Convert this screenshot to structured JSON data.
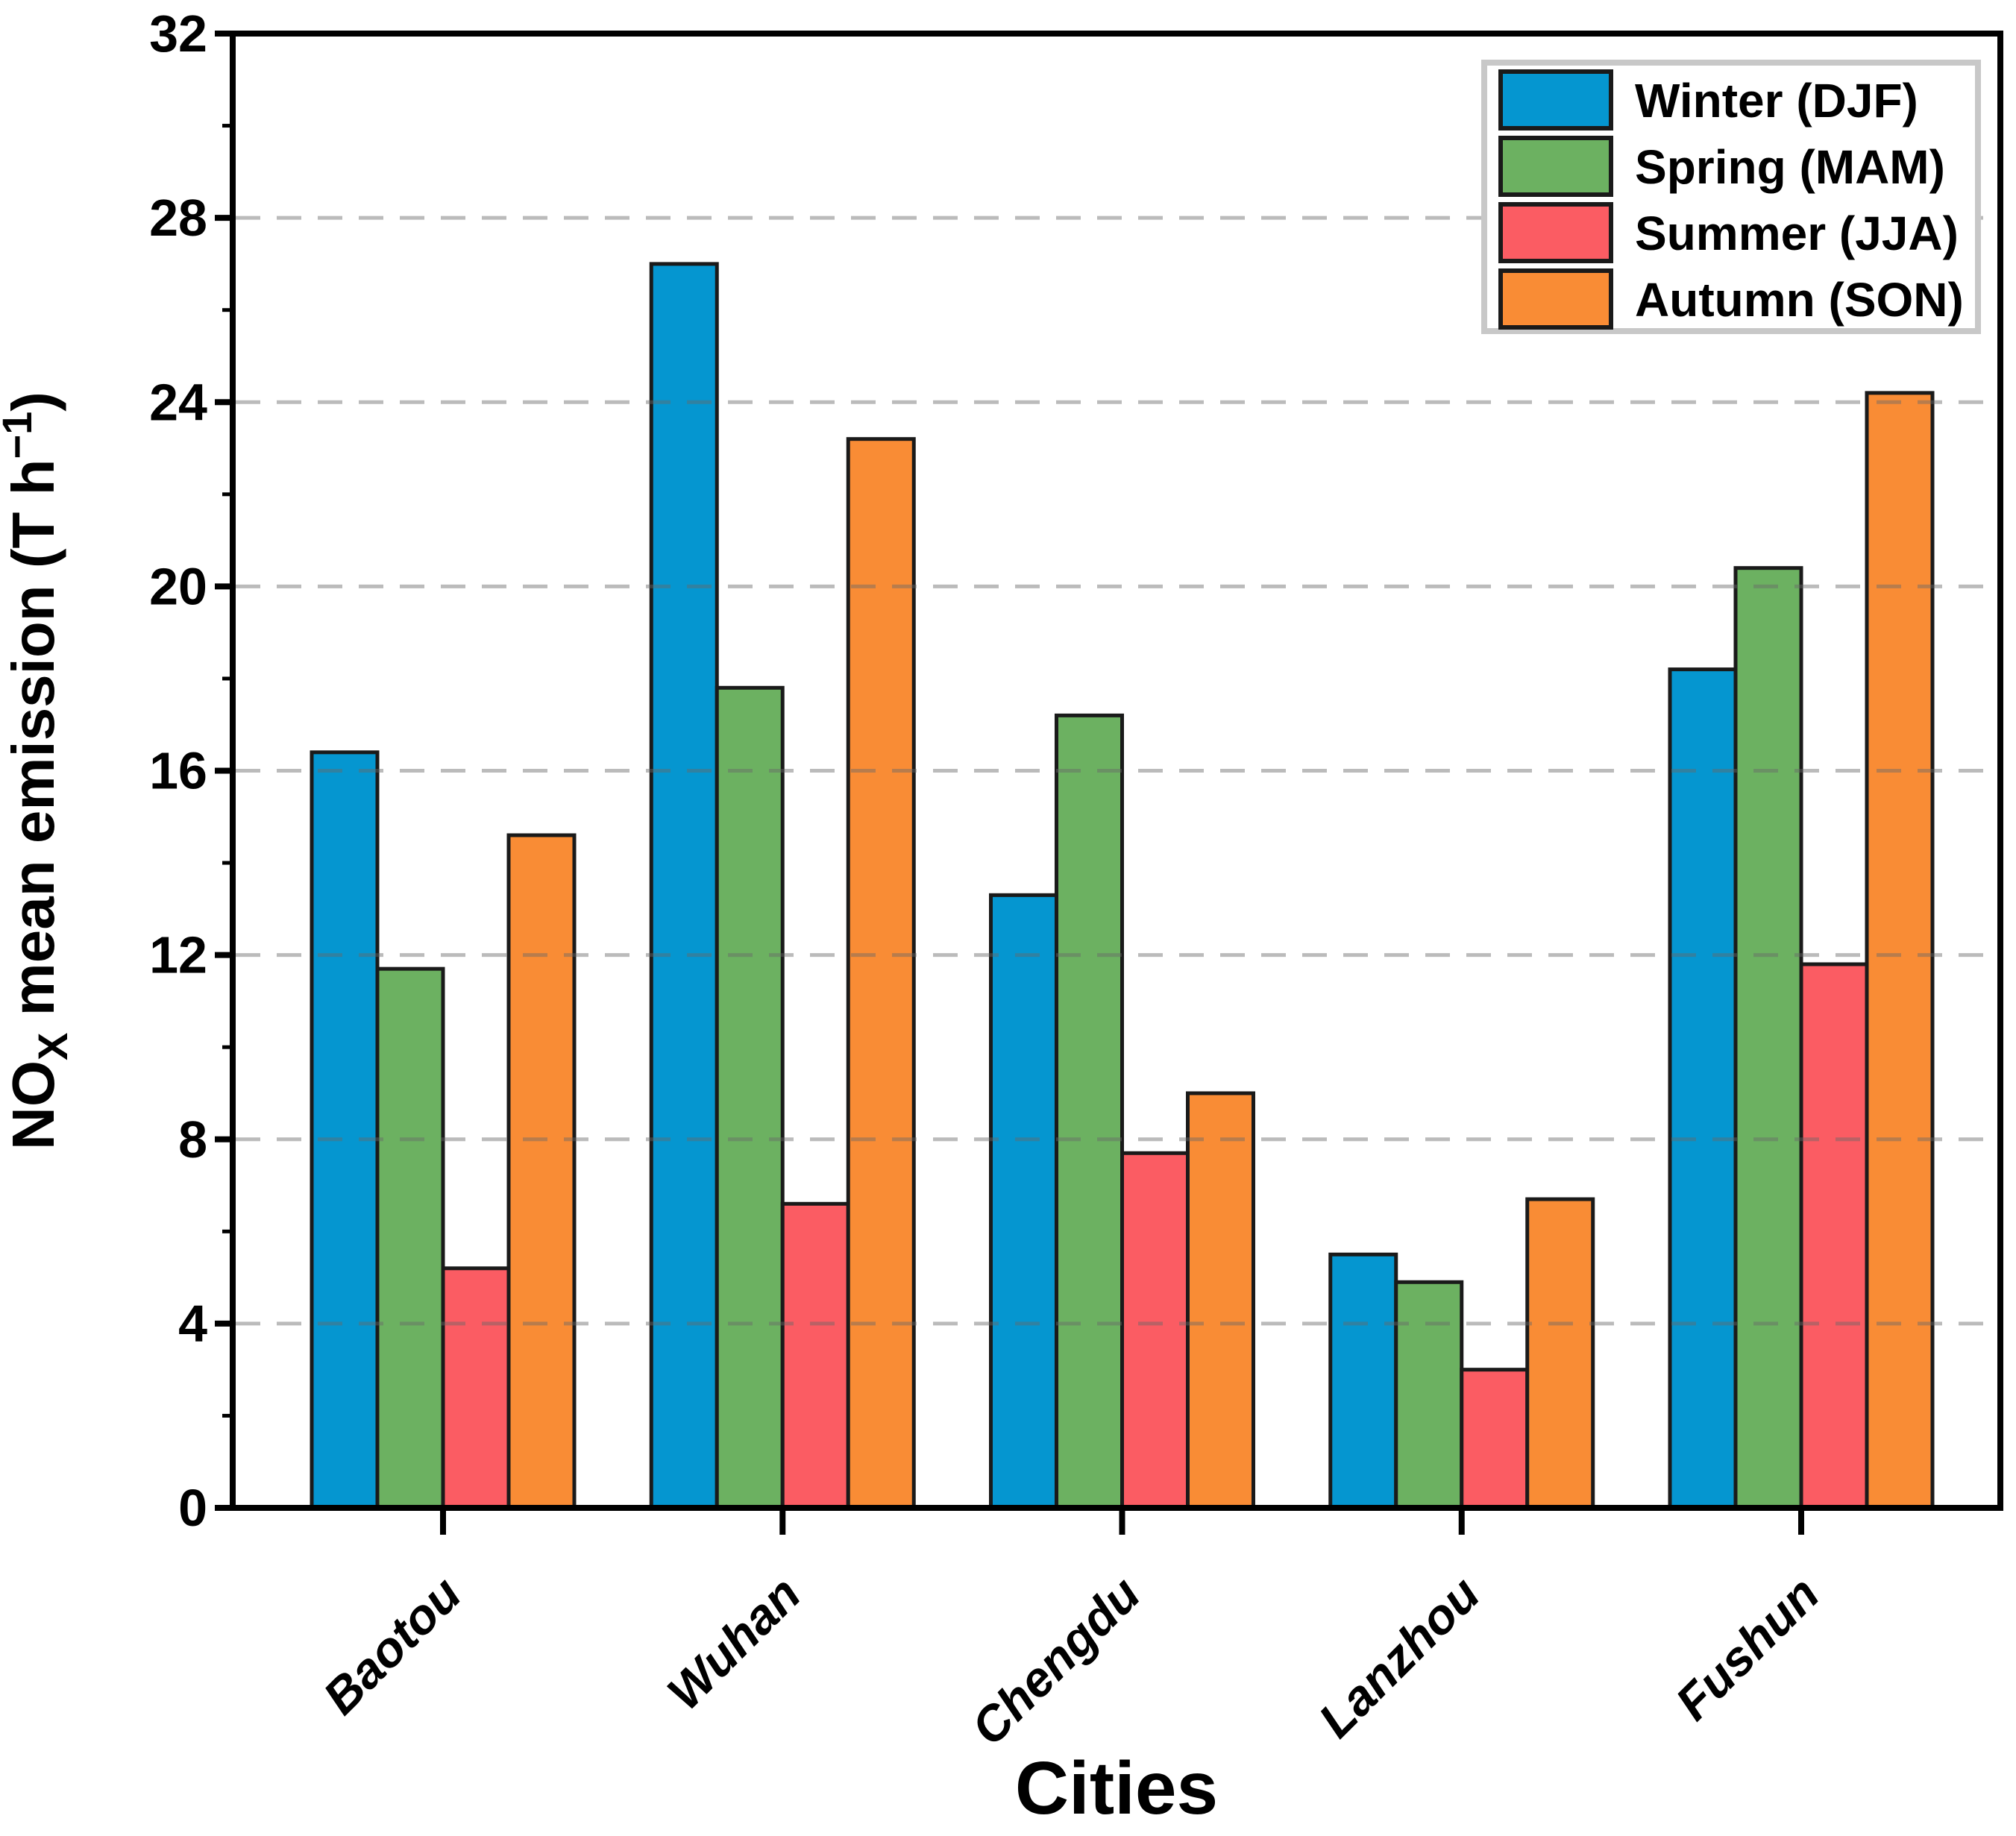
{
  "chart_data": {
    "type": "bar",
    "title": "",
    "categories": [
      "Baotou",
      "Wuhan",
      "Chengdu",
      "Lanzhou",
      "Fushun"
    ],
    "series": [
      {
        "name": "Winter (DJF)",
        "color": "#0596D0",
        "values": [
          16.4,
          27.0,
          13.3,
          5.5,
          18.2
        ]
      },
      {
        "name": "Spring (MAM)",
        "color": "#6CB161",
        "values": [
          11.7,
          17.8,
          17.2,
          4.9,
          20.4
        ]
      },
      {
        "name": "Summer (JJA)",
        "color": "#FB5C63",
        "values": [
          5.2,
          6.6,
          7.7,
          3.0,
          11.8
        ]
      },
      {
        "name": "Autumn (SON)",
        "color": "#F98C35",
        "values": [
          14.6,
          23.2,
          9.0,
          6.7,
          24.2
        ]
      }
    ],
    "xlabel": "Cities",
    "ylabel": "NOX mean emission (T h−1)",
    "ylabel_parts": {
      "base": "NO",
      "subscript": "X",
      "middle": " mean emission (T h",
      "superscript": "−1",
      "end": ")"
    },
    "ylim": [
      0,
      32
    ],
    "yticks": [
      0,
      4,
      8,
      12,
      16,
      20,
      24,
      28,
      32
    ],
    "minor_tick_step": 2,
    "grid": "horizontal dashed gridlines at major ticks, drawn over bars",
    "legend_position": "upper right"
  },
  "styles": {
    "background": "#ffffff",
    "axis_color": "#000000",
    "bar_edge_color": "#1a1a1a",
    "grid_color_rgba": "rgba(105,105,105,0.45)",
    "legend_border_color": "#c8c8c8",
    "legend_fill": "#ffffff",
    "text_color": "#000000"
  }
}
